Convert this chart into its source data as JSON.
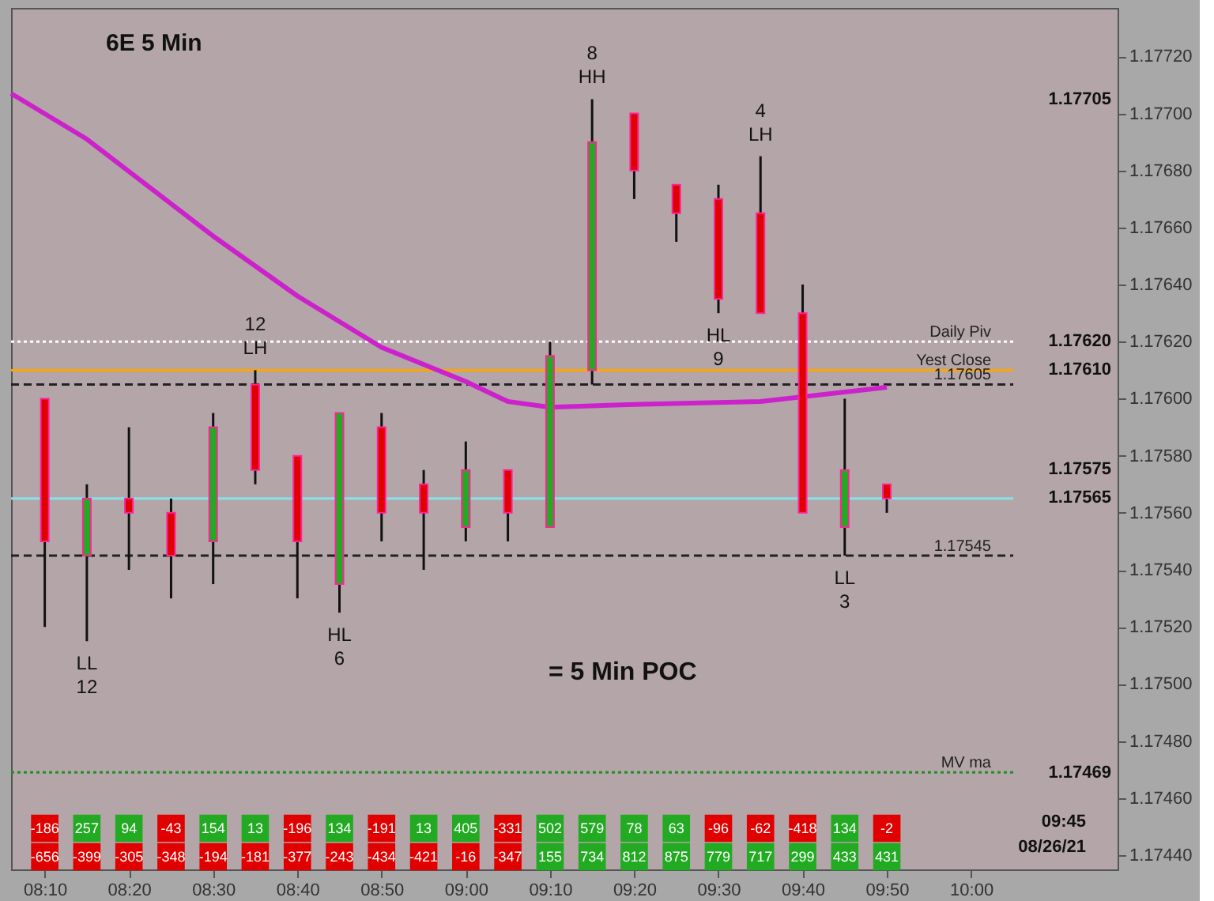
{
  "chart_data": {
    "type": "candlestick",
    "title": "6E 5 Min",
    "x": [
      8.1667,
      8.25,
      8.3333,
      8.4167,
      8.5,
      8.5833,
      8.6667,
      8.75,
      8.8333,
      8.9167,
      9.0,
      9.0833,
      9.1667,
      9.25,
      9.3333,
      9.4167,
      9.5,
      9.5833,
      9.6667,
      9.75,
      9.8333
    ],
    "ohlc": [
      [
        1.176,
        1.176,
        1.1752,
        1.1755
      ],
      [
        1.17545,
        1.1757,
        1.17515,
        1.17565
      ],
      [
        1.17565,
        1.1759,
        1.1754,
        1.1756
      ],
      [
        1.1756,
        1.17565,
        1.1753,
        1.17545
      ],
      [
        1.1755,
        1.17595,
        1.17535,
        1.1759
      ],
      [
        1.17605,
        1.1761,
        1.1757,
        1.17575
      ],
      [
        1.1758,
        1.1758,
        1.1753,
        1.1755
      ],
      [
        1.17535,
        1.17595,
        1.17525,
        1.17595
      ],
      [
        1.1759,
        1.17595,
        1.1755,
        1.1756
      ],
      [
        1.1757,
        1.17575,
        1.1754,
        1.1756
      ],
      [
        1.17555,
        1.17585,
        1.1755,
        1.17575
      ],
      [
        1.17575,
        1.17575,
        1.1755,
        1.1756
      ],
      [
        1.17555,
        1.1762,
        1.17555,
        1.17615
      ],
      [
        1.1761,
        1.17705,
        1.17605,
        1.1769
      ],
      [
        1.177,
        1.177,
        1.1767,
        1.1768
      ],
      [
        1.17675,
        1.17675,
        1.17655,
        1.17665
      ],
      [
        1.1767,
        1.17675,
        1.1763,
        1.17635
      ],
      [
        1.17665,
        1.17685,
        1.1763,
        1.1763
      ],
      [
        1.1763,
        1.1764,
        1.1756,
        1.1756
      ],
      [
        1.17555,
        1.176,
        1.17545,
        1.17575
      ],
      [
        1.1757,
        1.1757,
        1.1756,
        1.17565
      ]
    ],
    "series": [
      {
        "type": "line",
        "color": "#cc22cc",
        "x": [
          8.1,
          8.25,
          8.5,
          8.6667,
          8.8333,
          9.0,
          9.0833,
          9.1667,
          9.3333,
          9.5833,
          9.8333
        ],
        "values": [
          1.17707,
          1.17691,
          1.17657,
          1.17636,
          1.17618,
          1.17606,
          1.17599,
          1.17597,
          1.17598,
          1.17599,
          1.17604
        ]
      }
    ],
    "xlim": [
      8.1,
      10.29
    ],
    "xticks": [
      {
        "value": 8.1667,
        "label": "08:10"
      },
      {
        "value": 8.3333,
        "label": "08:20"
      },
      {
        "value": 8.5,
        "label": "08:30"
      },
      {
        "value": 8.6667,
        "label": "08:40"
      },
      {
        "value": 8.8333,
        "label": "08:50"
      },
      {
        "value": 9.0,
        "label": "09:00"
      },
      {
        "value": 9.1667,
        "label": "09:10"
      },
      {
        "value": 9.3333,
        "label": "09:20"
      },
      {
        "value": 9.5,
        "label": "09:30"
      },
      {
        "value": 9.6667,
        "label": "09:40"
      },
      {
        "value": 9.8333,
        "label": "09:50"
      },
      {
        "value": 10.0,
        "label": "10:00"
      }
    ],
    "ylim": [
      1.17435,
      1.17737
    ],
    "yticks": [
      {
        "value": 1.1744,
        "label": "1.17440"
      },
      {
        "value": 1.1746,
        "label": "1.17460"
      },
      {
        "value": 1.1748,
        "label": "1.17480"
      },
      {
        "value": 1.175,
        "label": "1.17500"
      },
      {
        "value": 1.1752,
        "label": "1.17520"
      },
      {
        "value": 1.1754,
        "label": "1.17540"
      },
      {
        "value": 1.1756,
        "label": "1.17560"
      },
      {
        "value": 1.1758,
        "label": "1.17580"
      },
      {
        "value": 1.176,
        "label": "1.17600"
      },
      {
        "value": 1.1762,
        "label": "1.17620"
      },
      {
        "value": 1.1764,
        "label": "1.17640"
      },
      {
        "value": 1.1766,
        "label": "1.17660"
      },
      {
        "value": 1.1768,
        "label": "1.17680"
      },
      {
        "value": 1.177,
        "label": "1.17700"
      },
      {
        "value": 1.1772,
        "label": "1.17720"
      }
    ],
    "ref_lines": [
      {
        "axis": "y",
        "value": 1.1762,
        "label": "Daily Piv",
        "color": "#ffffff",
        "line_style": "dotted"
      },
      {
        "axis": "y",
        "value": 1.1761,
        "label": "Yest Close",
        "color": "#ffa500",
        "line_style": "solid"
      },
      {
        "axis": "y",
        "value": 1.17605,
        "label": "1.17605",
        "color": "#222222",
        "line_style": "dashed"
      },
      {
        "axis": "y",
        "value": 1.17545,
        "label": "1.17545",
        "color": "#222222",
        "line_style": "dashed"
      },
      {
        "axis": "y",
        "value": 1.17565,
        "color": "#88e0e8",
        "line_style": "solid"
      },
      {
        "axis": "y",
        "value": 1.17469,
        "label": "MV ma",
        "color": "#1f8f1f",
        "line_style": "dotted"
      }
    ],
    "annotations": [
      {
        "text": "LL",
        "x": 8.25,
        "y": 1.17515
      },
      {
        "text": "12",
        "x": 8.25,
        "y": 1.17515
      },
      {
        "text": "LH",
        "x": 8.5833,
        "y": 1.1761
      },
      {
        "text": "12",
        "x": 8.5833,
        "y": 1.1761
      },
      {
        "text": "HL",
        "x": 8.75,
        "y": 1.17525
      },
      {
        "text": "6",
        "x": 8.75,
        "y": 1.17525
      },
      {
        "text": "HH",
        "x": 9.25,
        "y": 1.17705
      },
      {
        "text": "8",
        "x": 9.25,
        "y": 1.17705
      },
      {
        "text": "LH",
        "x": 9.5833,
        "y": 1.17685
      },
      {
        "text": "4",
        "x": 9.5833,
        "y": 1.17685
      },
      {
        "text": "HL",
        "x": 9.5,
        "y": 1.1763
      },
      {
        "text": "9",
        "x": 9.5,
        "y": 1.1763
      },
      {
        "text": "LL",
        "x": 9.75,
        "y": 1.17545
      },
      {
        "text": "3",
        "x": 9.75,
        "y": 1.17545
      },
      "= 5 Min POC",
      "09:45",
      "08/26/21",
      "1.17705",
      "1.17575",
      "1.17620",
      "1.17610",
      "1.17565",
      "1.17469",
      {
        "text": "-186",
        "x": 8.1667
      },
      {
        "text": "257",
        "x": 8.25
      },
      {
        "text": "94",
        "x": 8.3333
      },
      {
        "text": "-43",
        "x": 8.4167
      },
      {
        "text": "154",
        "x": 8.5
      },
      {
        "text": "13",
        "x": 8.5833
      },
      {
        "text": "-196",
        "x": 8.6667
      },
      {
        "text": "134",
        "x": 8.75
      },
      {
        "text": "-191",
        "x": 8.8333
      },
      {
        "text": "13",
        "x": 8.9167
      },
      {
        "text": "405",
        "x": 9.0
      },
      {
        "text": "-331",
        "x": 9.0833
      },
      {
        "text": "502",
        "x": 9.1667
      },
      {
        "text": "579",
        "x": 9.25
      },
      {
        "text": "78",
        "x": 9.3333
      },
      {
        "text": "63",
        "x": 9.4167
      },
      {
        "text": "-96",
        "x": 9.5
      },
      {
        "text": "-62",
        "x": 9.5833
      },
      {
        "text": "-418",
        "x": 9.6667
      },
      {
        "text": "134",
        "x": 9.75
      },
      {
        "text": "-2",
        "x": 9.8333
      },
      {
        "text": "-656",
        "x": 8.1667
      },
      {
        "text": "-399",
        "x": 8.25
      },
      {
        "text": "-305",
        "x": 8.3333
      },
      {
        "text": "-348",
        "x": 8.4167
      },
      {
        "text": "-194",
        "x": 8.5
      },
      {
        "text": "-181",
        "x": 8.5833
      },
      {
        "text": "-377",
        "x": 8.6667
      },
      {
        "text": "-243",
        "x": 8.75
      },
      {
        "text": "-434",
        "x": 8.8333
      },
      {
        "text": "-421",
        "x": 8.9167
      },
      {
        "text": "-16",
        "x": 9.0
      },
      {
        "text": "-347",
        "x": 9.0833
      },
      {
        "text": "155",
        "x": 9.1667
      },
      {
        "text": "734",
        "x": 9.25
      },
      {
        "text": "812",
        "x": 9.3333
      },
      {
        "text": "875",
        "x": 9.4167
      },
      {
        "text": "779",
        "x": 9.5
      },
      {
        "text": "717",
        "x": 9.5833
      },
      {
        "text": "299",
        "x": 9.6667
      },
      {
        "text": "433",
        "x": 9.75
      },
      {
        "text": "431",
        "x": 9.8333
      }
    ]
  }
}
